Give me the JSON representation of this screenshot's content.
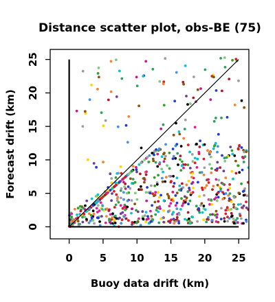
{
  "chart_data": {
    "type": "scatter",
    "title": "Distance scatter plot, obs-BE (75)",
    "xlabel": "Buoy data drift (km)",
    "ylabel": "Forecast drift (km)",
    "xlim": [
      -2.8,
      26.5
    ],
    "ylim": [
      -1.8,
      26.5
    ],
    "xticks": [
      0,
      5,
      10,
      15,
      20,
      25
    ],
    "yticks": [
      0,
      5,
      10,
      15,
      20,
      25
    ],
    "xtick_labels": [
      "0",
      "5",
      "10",
      "15",
      "20",
      "25"
    ],
    "ytick_labels": [
      "0",
      "5",
      "10",
      "15",
      "20",
      "25"
    ],
    "grid": false,
    "reference_line": {
      "from": [
        0,
        0
      ],
      "to": [
        25,
        25
      ]
    },
    "axis_lines": {
      "vertical": {
        "x": 0,
        "y": [
          0,
          25
        ]
      },
      "horizontal": {
        "y": 0,
        "x": [
          0,
          25
        ]
      }
    },
    "palette": [
      "#000000",
      "#e41a1c",
      "#33a02c",
      "#1f3bd6",
      "#00c5d4",
      "#e31a9c",
      "#ffd400",
      "#9e9e9e",
      "#b2182b",
      "#6a3d9a",
      "#f58231",
      "#4a90e2",
      "#7fc97f",
      "#c51b8a",
      "#8c510a",
      "#2ca25f"
    ],
    "point_cloud": {
      "n": 780,
      "x_range": [
        0,
        26.5
      ],
      "y_range": [
        0,
        25.5
      ],
      "note_dense_region": "most points at forecast drift below buoy drift, concentrated y 2-10, x 3-25"
    }
  }
}
